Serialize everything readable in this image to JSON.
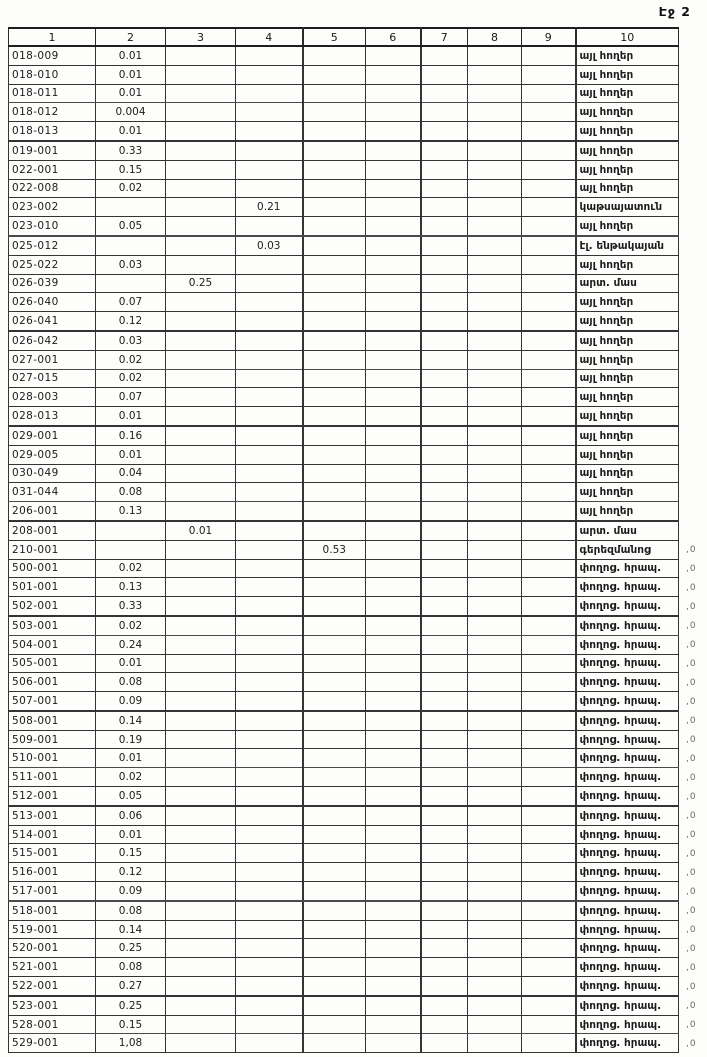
{
  "page": {
    "header": "Էջ 2"
  },
  "table": {
    "column_headers": [
      "1",
      "2",
      "3",
      "4",
      "5",
      "6",
      "7",
      "8",
      "9",
      "10"
    ],
    "rows": [
      {
        "cells": [
          "018-009",
          "0.01",
          "",
          "",
          "",
          "",
          "",
          "",
          "",
          "այլ հողեր"
        ],
        "mark": ""
      },
      {
        "cells": [
          "018-010",
          "0.01",
          "",
          "",
          "",
          "",
          "",
          "",
          "",
          "այլ հողեր"
        ],
        "mark": ""
      },
      {
        "cells": [
          "018-011",
          "0.01",
          "",
          "",
          "",
          "",
          "",
          "",
          "",
          "այլ հողեր"
        ],
        "mark": ""
      },
      {
        "cells": [
          "018-012",
          "0.004",
          "",
          "",
          "",
          "",
          "",
          "",
          "",
          "այլ հողեր"
        ],
        "mark": ""
      },
      {
        "cells": [
          "018-013",
          "0.01",
          "",
          "",
          "",
          "",
          "",
          "",
          "",
          "այլ հողեր"
        ],
        "mark": ""
      },
      {
        "cells": [
          "019-001",
          "0.33",
          "",
          "",
          "",
          "",
          "",
          "",
          "",
          "այլ հողեր"
        ],
        "mark": ""
      },
      {
        "cells": [
          "022-001",
          "0.15",
          "",
          "",
          "",
          "",
          "",
          "",
          "",
          "այլ հողեր"
        ],
        "mark": ""
      },
      {
        "cells": [
          "022-008",
          "0.02",
          "",
          "",
          "",
          "",
          "",
          "",
          "",
          "այլ հողեր"
        ],
        "mark": ""
      },
      {
        "cells": [
          "023-002",
          "",
          "",
          "0.21",
          "",
          "",
          "",
          "",
          "",
          "կաթսայատուն"
        ],
        "mark": ""
      },
      {
        "cells": [
          "023-010",
          "0.05",
          "",
          "",
          "",
          "",
          "",
          "",
          "",
          "այլ հողեր"
        ],
        "mark": ""
      },
      {
        "cells": [
          "025-012",
          "",
          "",
          "0.03",
          "",
          "",
          "",
          "",
          "",
          "էլ. ենթակայան"
        ],
        "mark": ""
      },
      {
        "cells": [
          "025-022",
          "0.03",
          "",
          "",
          "",
          "",
          "",
          "",
          "",
          "այլ հողեր"
        ],
        "mark": ""
      },
      {
        "cells": [
          "026-039",
          "",
          "0.25",
          "",
          "",
          "",
          "",
          "",
          "",
          "արտ. մաս"
        ],
        "mark": ""
      },
      {
        "cells": [
          "026-040",
          "0.07",
          "",
          "",
          "",
          "",
          "",
          "",
          "",
          "այլ հողեր"
        ],
        "mark": ""
      },
      {
        "cells": [
          "026-041",
          "0.12",
          "",
          "",
          "",
          "",
          "",
          "",
          "",
          "այլ հողեր"
        ],
        "mark": ""
      },
      {
        "cells": [
          "026-042",
          "0.03",
          "",
          "",
          "",
          "",
          "",
          "",
          "",
          "այլ հողեր"
        ],
        "mark": ""
      },
      {
        "cells": [
          "027-001",
          "0.02",
          "",
          "",
          "",
          "",
          "",
          "",
          "",
          "այլ հողեր"
        ],
        "mark": ""
      },
      {
        "cells": [
          "027-015",
          "0.02",
          "",
          "",
          "",
          "",
          "",
          "",
          "",
          "այլ հողեր"
        ],
        "mark": ""
      },
      {
        "cells": [
          "028-003",
          "0.07",
          "",
          "",
          "",
          "",
          "",
          "",
          "",
          "այլ հողեր"
        ],
        "mark": ""
      },
      {
        "cells": [
          "028-013",
          "0.01",
          "",
          "",
          "",
          "",
          "",
          "",
          "",
          "այլ հողեր"
        ],
        "mark": ""
      },
      {
        "cells": [
          "029-001",
          "0.16",
          "",
          "",
          "",
          "",
          "",
          "",
          "",
          "այլ հողեր"
        ],
        "mark": ""
      },
      {
        "cells": [
          "029-005",
          "0.01",
          "",
          "",
          "",
          "",
          "",
          "",
          "",
          "այլ հողեր"
        ],
        "mark": ""
      },
      {
        "cells": [
          "030-049",
          "0.04",
          "",
          "",
          "",
          "",
          "",
          "",
          "",
          "այլ հողեր"
        ],
        "mark": ""
      },
      {
        "cells": [
          "031-044",
          "0.08",
          "",
          "",
          "",
          "",
          "",
          "",
          "",
          "այլ հողեր"
        ],
        "mark": ""
      },
      {
        "cells": [
          "206-001",
          "0.13",
          "",
          "",
          "",
          "",
          "",
          "",
          "",
          "այլ հողեր"
        ],
        "mark": ""
      },
      {
        "cells": [
          "208-001",
          "",
          "0.01",
          "",
          "",
          "",
          "",
          "",
          "",
          "արտ. մաս"
        ],
        "mark": ""
      },
      {
        "cells": [
          "210-001",
          "",
          "",
          "",
          "0.53",
          "",
          "",
          "",
          "",
          "գերեզմանոց"
        ],
        "mark": ",0"
      },
      {
        "cells": [
          "500-001",
          "0.02",
          "",
          "",
          "",
          "",
          "",
          "",
          "",
          "փողոց. հրապ."
        ],
        "mark": ",0"
      },
      {
        "cells": [
          "501-001",
          "0.13",
          "",
          "",
          "",
          "",
          "",
          "",
          "",
          "փողոց. հրապ."
        ],
        "mark": ",0"
      },
      {
        "cells": [
          "502-001",
          "0.33",
          "",
          "",
          "",
          "",
          "",
          "",
          "",
          "փողոց. հրապ."
        ],
        "mark": ",0"
      },
      {
        "cells": [
          "503-001",
          "0.02",
          "",
          "",
          "",
          "",
          "",
          "",
          "",
          "փողոց. հրապ."
        ],
        "mark": ",0"
      },
      {
        "cells": [
          "504-001",
          "0.24",
          "",
          "",
          "",
          "",
          "",
          "",
          "",
          "փողոց. հրապ."
        ],
        "mark": ",0"
      },
      {
        "cells": [
          "505-001",
          "0.01",
          "",
          "",
          "",
          "",
          "",
          "",
          "",
          "փողոց. հրապ."
        ],
        "mark": ",0"
      },
      {
        "cells": [
          "506-001",
          "0.08",
          "",
          "",
          "",
          "",
          "",
          "",
          "",
          "փողոց. հրապ."
        ],
        "mark": ",0"
      },
      {
        "cells": [
          "507-001",
          "0.09",
          "",
          "",
          "",
          "",
          "",
          "",
          "",
          "փողոց. հրապ."
        ],
        "mark": ",0"
      },
      {
        "cells": [
          "508-001",
          "0.14",
          "",
          "",
          "",
          "",
          "",
          "",
          "",
          "փողոց. հրապ."
        ],
        "mark": ",0"
      },
      {
        "cells": [
          "509-001",
          "0.19",
          "",
          "",
          "",
          "",
          "",
          "",
          "",
          "փողոց. հրապ."
        ],
        "mark": ",0"
      },
      {
        "cells": [
          "510-001",
          "0.01",
          "",
          "",
          "",
          "",
          "",
          "",
          "",
          "փողոց. հրապ."
        ],
        "mark": ",0"
      },
      {
        "cells": [
          "511-001",
          "0.02",
          "",
          "",
          "",
          "",
          "",
          "",
          "",
          "փողոց. հրապ."
        ],
        "mark": ",0"
      },
      {
        "cells": [
          "512-001",
          "0.05",
          "",
          "",
          "",
          "",
          "",
          "",
          "",
          "փողոց. հրապ."
        ],
        "mark": ",0"
      },
      {
        "cells": [
          "513-001",
          "0.06",
          "",
          "",
          "",
          "",
          "",
          "",
          "",
          "փողոց. հրապ."
        ],
        "mark": ",0"
      },
      {
        "cells": [
          "514-001",
          "0.01",
          "",
          "",
          "",
          "",
          "",
          "",
          "",
          "փողոց. հրապ."
        ],
        "mark": ",0"
      },
      {
        "cells": [
          "515-001",
          "0.15",
          "",
          "",
          "",
          "",
          "",
          "",
          "",
          "փողոց. հրապ."
        ],
        "mark": ",0"
      },
      {
        "cells": [
          "516-001",
          "0.12",
          "",
          "",
          "",
          "",
          "",
          "",
          "",
          "փողոց. հրապ."
        ],
        "mark": ",0"
      },
      {
        "cells": [
          "517-001",
          "0.09",
          "",
          "",
          "",
          "",
          "",
          "",
          "",
          "փողոց. հրապ."
        ],
        "mark": ",0"
      },
      {
        "cells": [
          "518-001",
          "0.08",
          "",
          "",
          "",
          "",
          "",
          "",
          "",
          "փողոց. հրապ."
        ],
        "mark": ",0"
      },
      {
        "cells": [
          "519-001",
          "0.14",
          "",
          "",
          "",
          "",
          "",
          "",
          "",
          "փողոց. հրապ."
        ],
        "mark": ",0"
      },
      {
        "cells": [
          "520-001",
          "0.25",
          "",
          "",
          "",
          "",
          "",
          "",
          "",
          "փողոց. հրապ."
        ],
        "mark": ",0"
      },
      {
        "cells": [
          "521-001",
          "0.08",
          "",
          "",
          "",
          "",
          "",
          "",
          "",
          "փողոց. հրապ."
        ],
        "mark": ",0"
      },
      {
        "cells": [
          "522-001",
          "0.27",
          "",
          "",
          "",
          "",
          "",
          "",
          "",
          "փողոց. հրապ."
        ],
        "mark": ",0"
      },
      {
        "cells": [
          "523-001",
          "0.25",
          "",
          "",
          "",
          "",
          "",
          "",
          "",
          "փողոց. հրապ."
        ],
        "mark": ",0"
      },
      {
        "cells": [
          "528-001",
          "0.15",
          "",
          "",
          "",
          "",
          "",
          "",
          "",
          "փողոց. հրապ."
        ],
        "mark": ",0"
      },
      {
        "cells": [
          "529-001",
          "1,08",
          "",
          "",
          "",
          "",
          "",
          "",
          "",
          "փողոց. հրապ."
        ],
        "mark": ",0"
      }
    ]
  }
}
